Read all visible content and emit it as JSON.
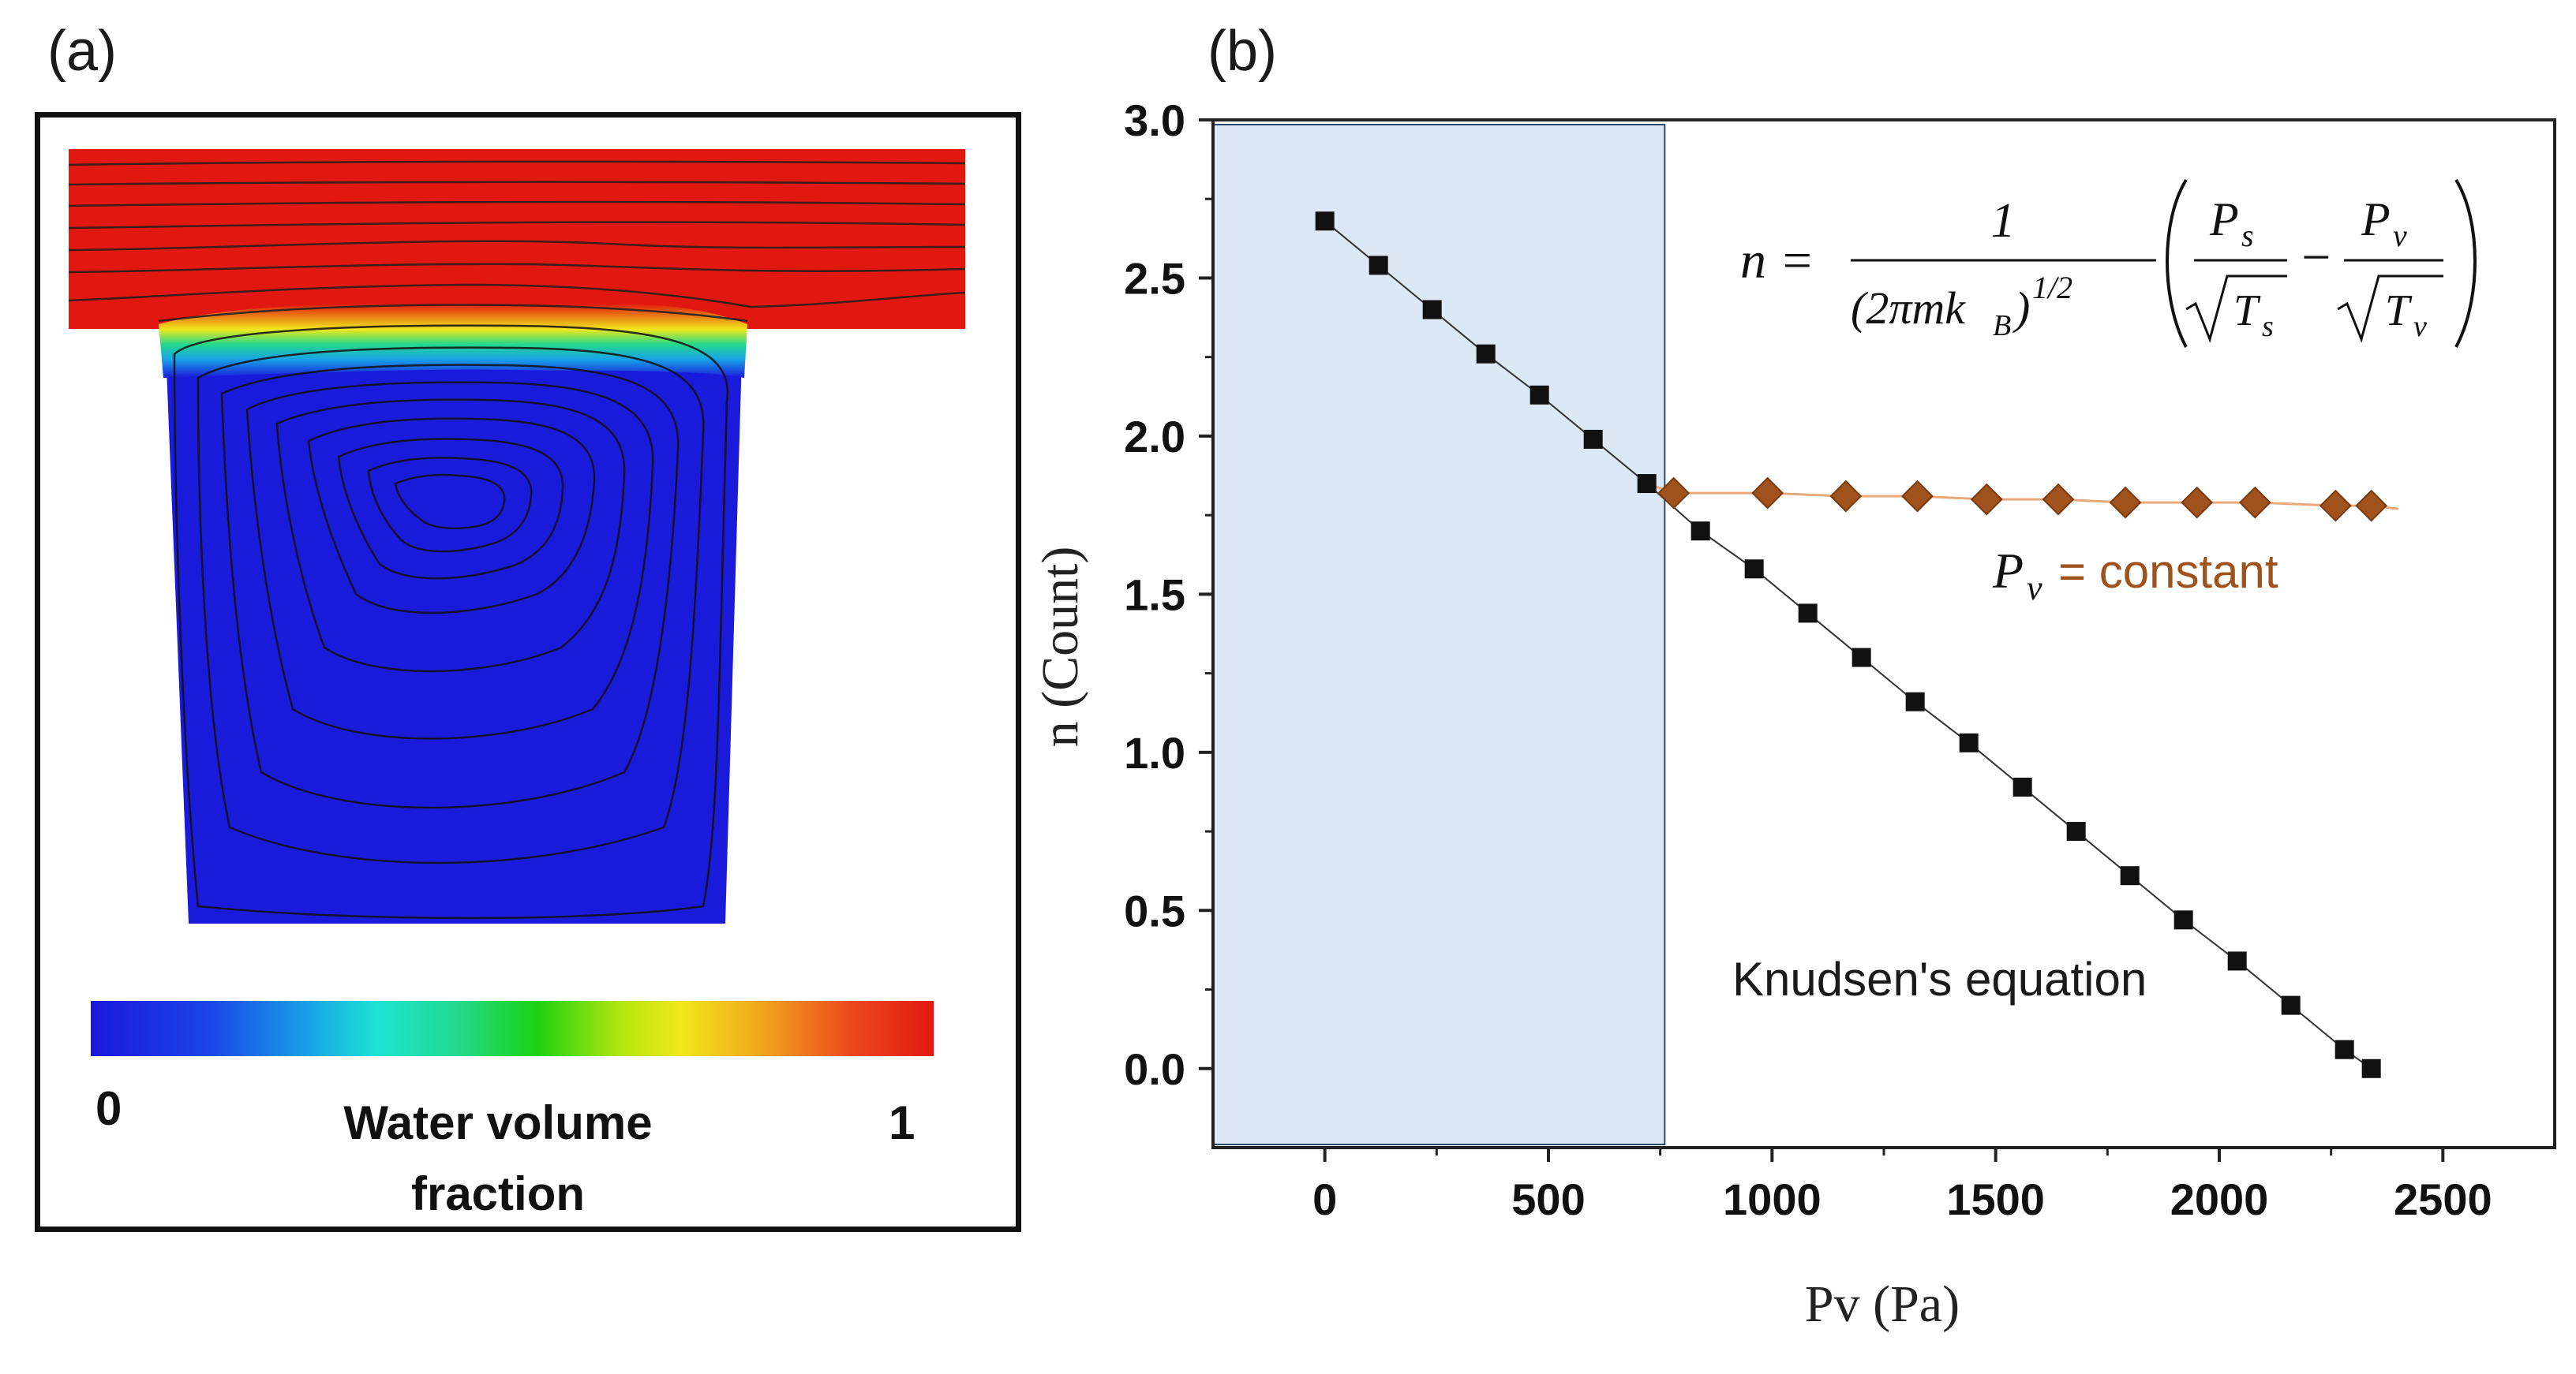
{
  "panel_a": {
    "label": "(a)",
    "colorbar": {
      "min_label": "0",
      "max_label": "1",
      "title_line1": "Water volume",
      "title_line2": "fraction"
    }
  },
  "panel_b": {
    "label": "(b)"
  },
  "chart_data": {
    "type": "scatter",
    "xlabel": "Pv (Pa)",
    "ylabel": "n (Count)",
    "xlim": [
      -250,
      2750
    ],
    "ylim": [
      -0.25,
      3.0
    ],
    "xticks": [
      0,
      500,
      1000,
      1500,
      2000,
      2500
    ],
    "yticks": [
      0.0,
      0.5,
      1.0,
      1.5,
      2.0,
      2.5,
      3.0
    ],
    "xtick_labels": [
      "0",
      "500",
      "1000",
      "1500",
      "2000",
      "2500"
    ],
    "ytick_labels": [
      "0.0",
      "0.5",
      "1.0",
      "1.5",
      "2.0",
      "2.5",
      "3.0"
    ],
    "shaded_region": {
      "x": [
        -250,
        760
      ],
      "color": "#dce8f5"
    },
    "series": [
      {
        "marker": "square",
        "color": "#111111",
        "x": [
          0,
          120,
          240,
          360,
          480,
          600,
          720,
          840,
          960,
          1080,
          1200,
          1320,
          1440,
          1560,
          1680,
          1800,
          1920,
          2040,
          2160,
          2280,
          2340
        ],
        "y": [
          2.68,
          2.54,
          2.4,
          2.26,
          2.13,
          1.99,
          1.85,
          1.7,
          1.58,
          1.44,
          1.3,
          1.16,
          1.03,
          0.89,
          0.75,
          0.61,
          0.47,
          0.34,
          0.2,
          0.06,
          0.0
        ]
      },
      {
        "marker": "diamond",
        "color": "#a0521c",
        "x": [
          780,
          990,
          1165,
          1325,
          1480,
          1640,
          1790,
          1950,
          2080,
          2260,
          2340
        ],
        "y": [
          1.82,
          1.82,
          1.81,
          1.81,
          1.8,
          1.8,
          1.79,
          1.79,
          1.79,
          1.78,
          1.78
        ]
      }
    ],
    "annotations": {
      "knudsen": "Knudsen's equation",
      "pv_constant": "= constant"
    },
    "equation": "n = 1/(2πmk_B)^{1/2} (P_s/√T_s − P_v/√T_v)"
  }
}
